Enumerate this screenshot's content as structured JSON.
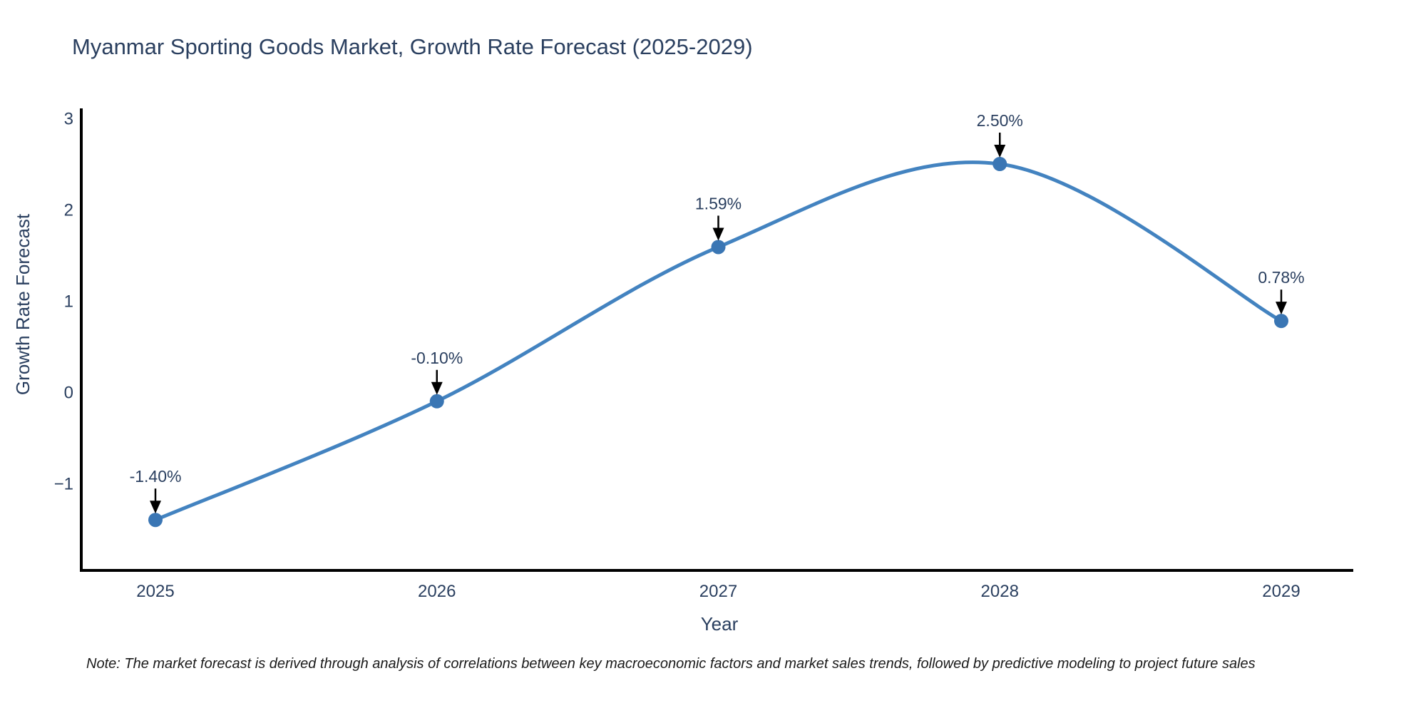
{
  "title": "Myanmar Sporting Goods Market, Growth Rate Forecast (2025-2029)",
  "note": "Note: The market forecast is derived through analysis of correlations between key macroeconomic factors and market sales trends, followed by predictive modeling to project future sales",
  "colors": {
    "line": "#4383c0",
    "marker": "#3a76b4",
    "axis_line": "#000000",
    "arrow": "#000000",
    "title_text": "#2a3f5f",
    "axis_text": "#2a3f5f",
    "note_text": "#1a1a1a",
    "background": "#ffffff"
  },
  "chart_data": {
    "type": "line",
    "title": "Myanmar Sporting Goods Market, Growth Rate Forecast (2025-2029)",
    "xlabel": "Year",
    "ylabel": "Growth Rate Forecast",
    "x": [
      2025,
      2026,
      2027,
      2028,
      2029
    ],
    "values": [
      -1.4,
      -0.1,
      1.59,
      2.5,
      0.78
    ],
    "point_labels": [
      "-1.40%",
      "-0.10%",
      "1.59%",
      "2.50%",
      "0.78%"
    ],
    "x_tick_labels": [
      "2025",
      "2026",
      "2027",
      "2028",
      "2029"
    ],
    "y_ticks": [
      3,
      2,
      1,
      0,
      -1
    ],
    "y_tick_labels": [
      "3",
      "2",
      "1",
      "0",
      "−1"
    ],
    "ylim": [
      -1.96,
      3.1
    ],
    "line_shape": "spline",
    "grid": false,
    "legend": "none",
    "annotations_style": "label with down arrow onto each point"
  }
}
